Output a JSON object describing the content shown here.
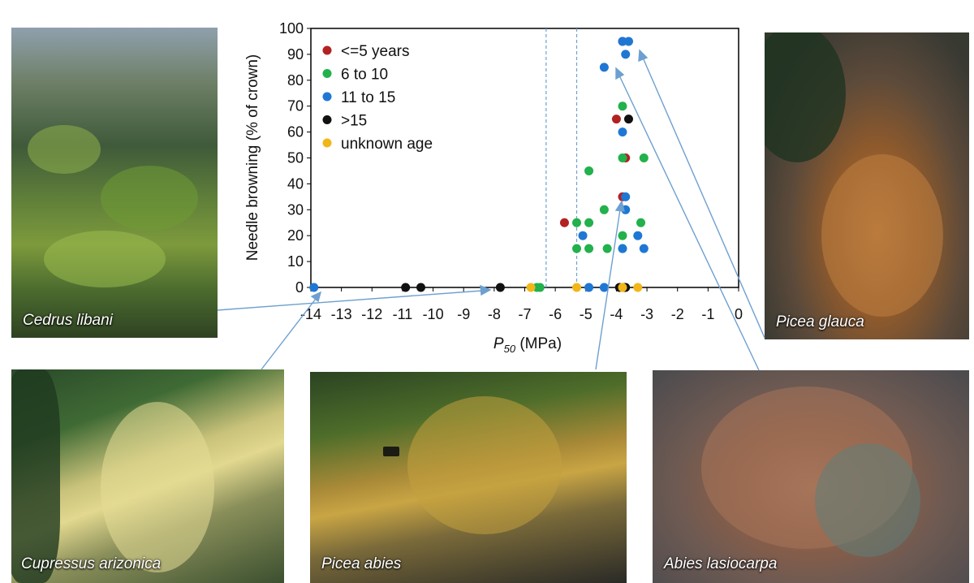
{
  "photos": {
    "cedrus": "Cedrus libani",
    "glauca": "Picea glauca",
    "cupressus": "Cupressus arizonica",
    "abies": "Picea abies",
    "lasiocarpa": "Abies lasiocarpa"
  },
  "chart_data": {
    "type": "scatter",
    "ylabel": "Needle browning (% of crown)",
    "xlabel_sym": "P",
    "xlabel_sub": "50",
    "xlabel_unit": " (MPa)",
    "xlim": [
      -14,
      0
    ],
    "ylim": [
      0,
      100
    ],
    "xticks": [
      -14,
      -13,
      -12,
      -11,
      -10,
      -9,
      -8,
      -7,
      -6,
      -5,
      -4,
      -3,
      -2,
      -1,
      0
    ],
    "yticks": [
      0,
      10,
      20,
      30,
      40,
      50,
      60,
      70,
      80,
      90,
      100
    ],
    "grid": false,
    "legend_position": "top-left",
    "reference_lines_x": [
      -6.3,
      -5.3
    ],
    "series": [
      {
        "name": "<=5 years",
        "color": "#b22222",
        "points": [
          [
            -5.7,
            25
          ],
          [
            -4.0,
            65
          ],
          [
            -3.7,
            50
          ],
          [
            -3.8,
            35
          ],
          [
            -3.8,
            95
          ],
          [
            -3.75,
            0
          ]
        ]
      },
      {
        "name": "6 to 10",
        "color": "#22b14c",
        "points": [
          [
            -5.3,
            25
          ],
          [
            -4.9,
            25
          ],
          [
            -4.4,
            30
          ],
          [
            -4.9,
            45
          ],
          [
            -3.8,
            70
          ],
          [
            -3.8,
            50
          ],
          [
            -3.1,
            50
          ],
          [
            -3.2,
            25
          ],
          [
            -3.8,
            20
          ],
          [
            -5.3,
            15
          ],
          [
            -4.9,
            15
          ],
          [
            -4.3,
            15
          ],
          [
            -3.8,
            15
          ],
          [
            -6.6,
            0
          ],
          [
            -6.5,
            0
          ]
        ]
      },
      {
        "name": "11 to 15",
        "color": "#1f77d4",
        "points": [
          [
            -3.8,
            95
          ],
          [
            -3.6,
            95
          ],
          [
            -3.7,
            90
          ],
          [
            -4.4,
            85
          ],
          [
            -3.8,
            60
          ],
          [
            -3.7,
            35
          ],
          [
            -3.7,
            30
          ],
          [
            -5.1,
            20
          ],
          [
            -3.3,
            20
          ],
          [
            -3.8,
            15
          ],
          [
            -3.1,
            15
          ],
          [
            -13.9,
            0
          ],
          [
            -4.9,
            0
          ],
          [
            -4.4,
            0
          ]
        ]
      },
      {
        "name": ">15",
        "color": "#111111",
        "points": [
          [
            -3.6,
            65
          ],
          [
            -10.9,
            0
          ],
          [
            -10.4,
            0
          ],
          [
            -7.8,
            0
          ],
          [
            -3.9,
            0
          ],
          [
            -3.7,
            0
          ]
        ]
      },
      {
        "name": "unknown age",
        "color": "#f2b619",
        "points": [
          [
            -6.8,
            0
          ],
          [
            -5.3,
            0
          ],
          [
            -3.8,
            0
          ],
          [
            -3.3,
            0
          ]
        ]
      }
    ]
  }
}
